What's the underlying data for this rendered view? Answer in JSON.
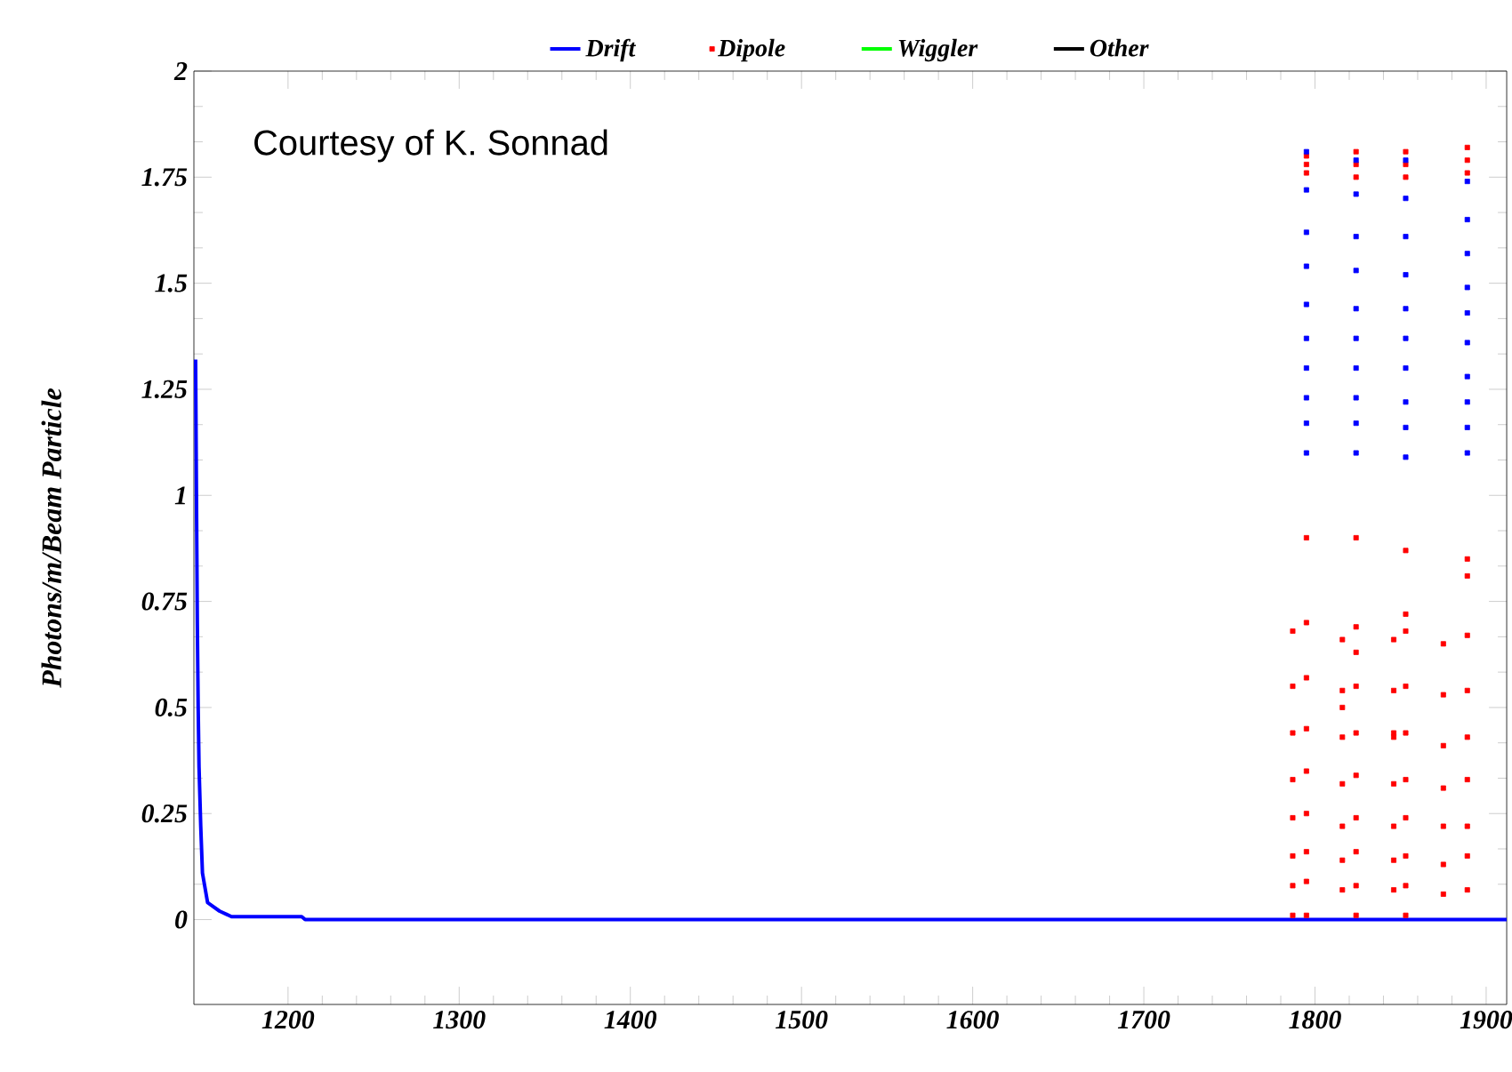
{
  "chart_data": {
    "type": "scatter",
    "ylabel": "Photons/m/Beam Particle",
    "xlim": [
      1145,
      1912
    ],
    "ylim": [
      -0.2,
      2
    ],
    "xticks": [
      1200,
      1300,
      1400,
      1500,
      1600,
      1700,
      1800,
      1900
    ],
    "yticks": [
      {
        "value": 0,
        "label": "0"
      },
      0.25,
      {
        "value": 0.5,
        "label": "0.5"
      },
      0.75,
      1,
      1.25,
      1.5,
      1.75,
      2
    ],
    "legend": "top",
    "grid": false,
    "annotations": [
      "Courtesy of K. Sonnad"
    ],
    "series": [
      {
        "name": "Drift",
        "type": "line",
        "color": "#0000ff",
        "x": [
          1146,
          1146.5,
          1147,
          1147.5,
          1148,
          1149,
          1150,
          1153,
          1160,
          1167,
          1208,
          1210,
          1912
        ],
        "values": [
          1.32,
          1.0,
          0.7,
          0.5,
          0.36,
          0.22,
          0.11,
          0.04,
          0.02,
          0.007,
          0.007,
          0,
          0
        ]
      },
      {
        "name": "Dipole",
        "marker": "square",
        "color": "#ff0000",
        "x": [
          1795,
          1795,
          1795,
          1795,
          1795,
          1795,
          1795,
          1795,
          1795,
          1795,
          1795,
          1795,
          1787,
          1787,
          1787,
          1787,
          1787,
          1787,
          1787,
          1787,
          1824,
          1824,
          1824,
          1824,
          1824,
          1824,
          1824,
          1824,
          1824,
          1824,
          1824,
          1824,
          1824,
          1816,
          1816,
          1816,
          1816,
          1816,
          1816,
          1816,
          1816,
          1853,
          1853,
          1853,
          1853,
          1853,
          1853,
          1853,
          1853,
          1853,
          1853,
          1853,
          1853,
          1853,
          1846,
          1846,
          1846,
          1846,
          1846,
          1846,
          1846,
          1846,
          1889,
          1889,
          1889,
          1889,
          1889,
          1889,
          1889,
          1889,
          1889,
          1889,
          1889,
          1889,
          1875,
          1875,
          1875,
          1875,
          1875,
          1875,
          1875
        ],
        "values": [
          1.8,
          1.78,
          1.76,
          0.9,
          0.7,
          0.57,
          0.45,
          0.35,
          0.25,
          0.16,
          0.09,
          0.01,
          0.68,
          0.55,
          0.44,
          0.33,
          0.24,
          0.15,
          0.08,
          0.01,
          1.81,
          1.78,
          1.75,
          0.9,
          0.69,
          0.63,
          0.55,
          0.44,
          0.34,
          0.24,
          0.16,
          0.08,
          0.01,
          0.66,
          0.54,
          0.5,
          0.43,
          0.32,
          0.22,
          0.14,
          0.07,
          1.81,
          1.78,
          1.75,
          0.87,
          0.72,
          0.68,
          0.55,
          0.44,
          0.33,
          0.24,
          0.15,
          0.08,
          0.01,
          0.66,
          0.54,
          0.44,
          0.43,
          0.32,
          0.22,
          0.14,
          0.07,
          1.82,
          1.79,
          1.76,
          0.85,
          0.81,
          0.67,
          0.54,
          0.43,
          0.33,
          0.22,
          0.15,
          0.07,
          0.65,
          0.53,
          0.41,
          0.31,
          0.22,
          0.13,
          0.06
        ]
      },
      {
        "name": "Wiggler",
        "type": "line",
        "color": "#00ff00"
      },
      {
        "name": "Other",
        "type": "line",
        "color": "#000000"
      },
      {
        "marker": "square",
        "color": "#0000ff",
        "x": [
          1795,
          1795,
          1795,
          1795,
          1795,
          1795,
          1795,
          1795,
          1795,
          1795,
          1824,
          1824,
          1824,
          1824,
          1824,
          1824,
          1824,
          1824,
          1824,
          1824,
          1853,
          1853,
          1853,
          1853,
          1853,
          1853,
          1853,
          1853,
          1853,
          1853,
          1889,
          1889,
          1889,
          1889,
          1889,
          1889,
          1889,
          1889,
          1889,
          1889
        ],
        "values": [
          1.81,
          1.72,
          1.62,
          1.54,
          1.45,
          1.37,
          1.3,
          1.23,
          1.17,
          1.1,
          1.79,
          1.71,
          1.61,
          1.53,
          1.44,
          1.37,
          1.3,
          1.23,
          1.17,
          1.1,
          1.79,
          1.7,
          1.61,
          1.52,
          1.44,
          1.37,
          1.3,
          1.22,
          1.16,
          1.09,
          1.74,
          1.65,
          1.57,
          1.49,
          1.43,
          1.36,
          1.28,
          1.22,
          1.16,
          1.1
        ]
      }
    ]
  }
}
